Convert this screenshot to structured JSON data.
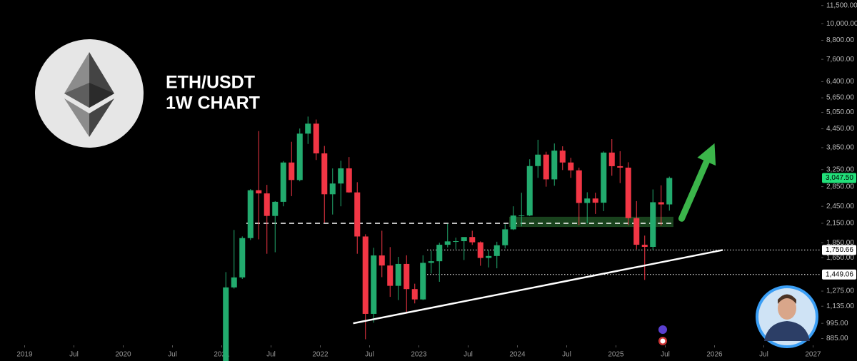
{
  "chart_data": {
    "type": "candlestick",
    "title": "ETH/USDT",
    "subtitle": "1W CHART",
    "log_scale": true,
    "up_color": "#22ab6e",
    "down_color": "#f23645",
    "xlim": [
      "2018-10",
      "2027-02"
    ],
    "ylim": [
      840,
      12000
    ],
    "xticks": [
      {
        "value": "2019-01",
        "label": "2019"
      },
      {
        "value": "2019-07",
        "label": "Jul"
      },
      {
        "value": "2020-01",
        "label": "2020"
      },
      {
        "value": "2020-07",
        "label": "Jul"
      },
      {
        "value": "2021-01",
        "label": "2021"
      },
      {
        "value": "2021-07",
        "label": "Jul"
      },
      {
        "value": "2022-01",
        "label": "2022"
      },
      {
        "value": "2022-07",
        "label": "Jul"
      },
      {
        "value": "2023-01",
        "label": "2023"
      },
      {
        "value": "2023-07",
        "label": "Jul"
      },
      {
        "value": "2024-01",
        "label": "2024"
      },
      {
        "value": "2024-07",
        "label": "Jul"
      },
      {
        "value": "2025-01",
        "label": "2025"
      },
      {
        "value": "2025-07",
        "label": "Jul"
      },
      {
        "value": "2026-01",
        "label": "2026"
      },
      {
        "value": "2026-07",
        "label": "Jul"
      },
      {
        "value": "2027-01",
        "label": "2027"
      }
    ],
    "yticks": [
      {
        "value": 11500,
        "label": "11,500.00"
      },
      {
        "value": 10000,
        "label": "10,000.00"
      },
      {
        "value": 8800,
        "label": "8,800.00"
      },
      {
        "value": 7600,
        "label": "7,600.00"
      },
      {
        "value": 6400,
        "label": "6,400.00"
      },
      {
        "value": 5650,
        "label": "5,650.00"
      },
      {
        "value": 5050,
        "label": "5,050.00"
      },
      {
        "value": 4450,
        "label": "4,450.00"
      },
      {
        "value": 3850,
        "label": "3,850.00"
      },
      {
        "value": 3250,
        "label": "3,250.00"
      },
      {
        "value": 2850,
        "label": "2,850.00"
      },
      {
        "value": 2450,
        "label": "2,450.00"
      },
      {
        "value": 2150,
        "label": "2,150.00"
      },
      {
        "value": 1850,
        "label": "1,850.00"
      },
      {
        "value": 1650,
        "label": "1,650.00"
      },
      {
        "value": 1275,
        "label": "1,275.00"
      },
      {
        "value": 1135,
        "label": "1,135.00"
      },
      {
        "value": 995,
        "label": "995.00"
      },
      {
        "value": 885,
        "label": "885.00"
      }
    ],
    "x": [
      "2021-01",
      "2021-02",
      "2021-03",
      "2021-04",
      "2021-05",
      "2021-06",
      "2021-07",
      "2021-08",
      "2021-09",
      "2021-10",
      "2021-11",
      "2021-12",
      "2022-01",
      "2022-02",
      "2022-03",
      "2022-04",
      "2022-05",
      "2022-06",
      "2022-07",
      "2022-08",
      "2022-09",
      "2022-10",
      "2022-11",
      "2022-12",
      "2023-01",
      "2023-02",
      "2023-03",
      "2023-04",
      "2023-05",
      "2023-06",
      "2023-07",
      "2023-08",
      "2023-09",
      "2023-10",
      "2023-11",
      "2023-12",
      "2024-01",
      "2024-02",
      "2024-03",
      "2024-04",
      "2024-05",
      "2024-06",
      "2024-07",
      "2024-08",
      "2024-09",
      "2024-10",
      "2024-11",
      "2024-12",
      "2025-01",
      "2025-02",
      "2025-03",
      "2025-04",
      "2025-05",
      "2025-06",
      "2025-07"
    ],
    "open": [
      737,
      1312,
      1417,
      1918,
      2773,
      2706,
      2275,
      2536,
      3433,
      3000,
      4288,
      4630,
      3683,
      2688,
      2920,
      3282,
      2727,
      1942,
      1070,
      1678,
      1553,
      1328,
      1572,
      1295,
      1196,
      1585,
      1605,
      1822,
      1870,
      1873,
      1934,
      1857,
      1646,
      1671,
      1815,
      2052,
      2282,
      2283,
      3340,
      3648,
      3015,
      3762,
      3433,
      3232,
      2514,
      2602,
      2519,
      3706,
      3337,
      3300,
      2237,
      1822,
      1793,
      2528,
      2486
    ],
    "high": [
      1476,
      2042,
      1943,
      2797,
      4372,
      2890,
      2550,
      3470,
      4027,
      4460,
      4890,
      4780,
      3900,
      3280,
      3480,
      3580,
      2950,
      1975,
      1780,
      2030,
      1790,
      1660,
      1680,
      1350,
      1680,
      1740,
      1850,
      2140,
      1925,
      1930,
      2030,
      1870,
      1750,
      1865,
      2135,
      2450,
      2720,
      3520,
      4090,
      3730,
      3975,
      3890,
      3560,
      3300,
      2730,
      2720,
      3740,
      4110,
      3745,
      3440,
      2550,
      1955,
      2790,
      2880,
      3080
    ],
    "low": [
      714,
      1300,
      1400,
      1890,
      1900,
      1700,
      1720,
      2450,
      2650,
      2970,
      3960,
      3500,
      2160,
      2300,
      2450,
      2720,
      1700,
      880,
      1000,
      1420,
      1220,
      1190,
      1075,
      1160,
      1190,
      1460,
      1370,
      1785,
      1760,
      1620,
      1820,
      1550,
      1530,
      1520,
      1770,
      2040,
      2100,
      2270,
      3050,
      2850,
      2870,
      3240,
      3050,
      2120,
      2150,
      2310,
      2360,
      3100,
      2930,
      2120,
      1760,
      1390,
      1750,
      2110,
      2370
    ],
    "close": [
      1312,
      1417,
      1918,
      2773,
      2706,
      2275,
      2536,
      3433,
      3000,
      4288,
      4630,
      3683,
      2688,
      2920,
      3282,
      2727,
      1942,
      1070,
      1678,
      1553,
      1328,
      1572,
      1295,
      1196,
      1585,
      1605,
      1822,
      1870,
      1873,
      1934,
      1857,
      1646,
      1671,
      1815,
      2052,
      2282,
      2283,
      3340,
      3648,
      3015,
      3762,
      3433,
      3232,
      2514,
      2602,
      2519,
      3706,
      3337,
      3300,
      2237,
      1822,
      1793,
      2528,
      2486,
      3047.5
    ],
    "last_price": {
      "value": 3047.5,
      "label": "3,047.50",
      "color": "#22e07a"
    },
    "levels": [
      {
        "value": 1750.66,
        "label": "1,750.66",
        "x": [
          "2023-02",
          "2027-02"
        ]
      },
      {
        "value": 1449.06,
        "label": "1,449.06",
        "x": [
          "2023-02",
          "2027-02"
        ]
      }
    ],
    "dashed_level": {
      "value": 2150,
      "x": [
        "2021-04",
        "2025-08"
      ]
    },
    "support_zone": {
      "x": [
        "2023-12",
        "2025-08"
      ],
      "y": [
        2090,
        2260
      ],
      "color": "#1d4d22"
    },
    "trendline": {
      "x": [
        "2022-05",
        "2026-02"
      ],
      "y": [
        995,
        1750
      ]
    },
    "arrow": {
      "x": [
        "2025-09",
        "2026-01"
      ],
      "y": [
        2230,
        3980
      ],
      "color": "#3bb54a"
    }
  }
}
